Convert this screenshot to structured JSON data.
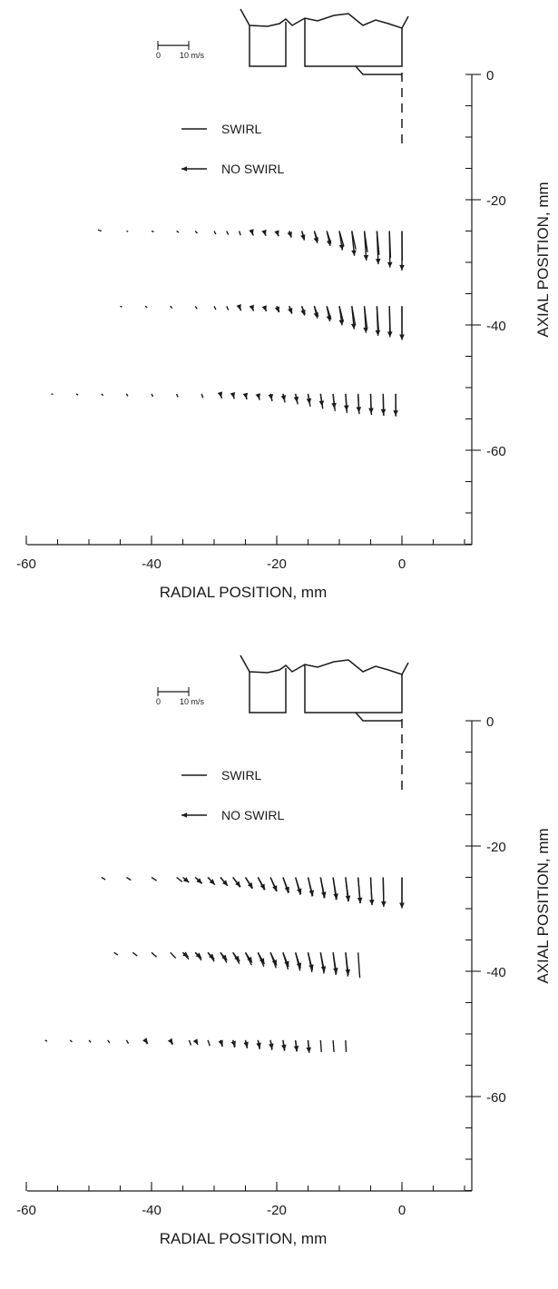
{
  "chart_data": [
    {
      "type": "quiver",
      "xlabel": "RADIAL POSITION, mm",
      "ylabel": "AXIAL POSITION, mm",
      "xlim": [
        -60,
        10
      ],
      "ylim": [
        -75,
        0
      ],
      "xticks": [
        -60,
        -40,
        -20,
        0
      ],
      "yticks": [
        0,
        -20,
        -40,
        -60
      ],
      "grid": false,
      "scale_bar": {
        "min_label": "0",
        "max_label": "10 m/s",
        "value": 10
      },
      "legend": [
        {
          "label": "SWIRL",
          "style": "plain"
        },
        {
          "label": "NO SWIRL",
          "style": "arrowhead"
        }
      ],
      "series": [
        {
          "name": "SWIRL",
          "y": -25,
          "x": [
            -48,
            -44,
            -40,
            -36,
            -33,
            -30,
            -28,
            -26,
            -24,
            -22,
            -20,
            -18,
            -16,
            -14,
            -12,
            -10,
            -8,
            -6,
            -4,
            -2,
            0
          ],
          "u": [
            -1.2,
            0.6,
            0.8,
            0.8,
            0.7,
            0.6,
            0.6,
            0.5,
            0.6,
            0.6,
            0.7,
            0.8,
            1,
            1.3,
            1.5,
            1.6,
            1.4,
            1.1,
            0.8,
            0.4,
            0.1
          ],
          "v": [
            0.4,
            -0.2,
            -0.3,
            -0.5,
            -0.8,
            -1.1,
            -1.3,
            -1.5,
            -1.6,
            -1.7,
            -1.8,
            -2.2,
            -2.8,
            -3.5,
            -4.5,
            -5.5,
            -6.5,
            -7.5,
            -8.5,
            -9.5,
            -10.5
          ]
        },
        {
          "name": "NO SWIRL",
          "y": -25,
          "x": [
            -24,
            -22,
            -20,
            -18,
            -16,
            -14,
            -12,
            -10,
            -8,
            -6,
            -4,
            -2,
            0
          ],
          "u": [
            0.4,
            0.5,
            0.6,
            0.7,
            0.9,
            1.1,
            1.2,
            1.1,
            0.9,
            0.7,
            0.5,
            0.2,
            0
          ],
          "v": [
            -1.4,
            -1.6,
            -1.8,
            -2.3,
            -3.3,
            -4.3,
            -5.3,
            -6.8,
            -8.8,
            -10.5,
            -11.8,
            -13,
            -14
          ]
        },
        {
          "name": "SWIRL",
          "y": -37,
          "x": [
            -45,
            -41,
            -37,
            -33,
            -30,
            -28,
            -26,
            -24,
            -22,
            -20,
            -18,
            -16,
            -14,
            -12,
            -10,
            -8,
            -6,
            -4,
            -2,
            0
          ],
          "u": [
            0.6,
            0.7,
            0.7,
            0.6,
            0.6,
            0.6,
            0.7,
            0.7,
            0.8,
            0.9,
            1,
            1.2,
            1.4,
            1.5,
            1.4,
            1.2,
            0.9,
            0.6,
            0.3,
            0
          ],
          "v": [
            -0.3,
            -0.5,
            -0.7,
            -1,
            -1.2,
            -1.4,
            -1.6,
            -1.7,
            -1.8,
            -2,
            -2.4,
            -2.9,
            -3.7,
            -4.7,
            -5.6,
            -6.7,
            -7.5,
            -8.5,
            -9.3,
            -10
          ]
        },
        {
          "name": "NO SWIRL",
          "y": -37,
          "x": [
            -26,
            -24,
            -22,
            -20,
            -18,
            -16,
            -14,
            -12,
            -10,
            -8,
            -6,
            -4,
            -2,
            0
          ],
          "u": [
            0.5,
            0.6,
            0.7,
            0.8,
            0.9,
            1,
            1.1,
            1.1,
            1,
            0.8,
            0.6,
            0.4,
            0.2,
            0
          ],
          "v": [
            -1.4,
            -1.6,
            -1.8,
            -2.2,
            -2.7,
            -3.3,
            -4.3,
            -5.4,
            -6.8,
            -8.2,
            -9.5,
            -10.5,
            -11,
            -12
          ]
        },
        {
          "name": "SWIRL",
          "y": -51,
          "x": [
            -56,
            -52,
            -48,
            -44,
            -40,
            -36,
            -32,
            -29,
            -27,
            -25,
            -23,
            -21,
            -19,
            -17,
            -15,
            -13,
            -11,
            -9,
            -7,
            -5,
            -3,
            -1
          ],
          "u": [
            0.6,
            0.6,
            0.6,
            0.5,
            0.5,
            0.5,
            0.5,
            0.5,
            0.5,
            0.5,
            0.6,
            0.6,
            0.7,
            0.8,
            0.8,
            0.8,
            0.7,
            0.5,
            0.4,
            0.3,
            0.2,
            0.1
          ],
          "v": [
            -0.2,
            -0.4,
            -0.6,
            -0.8,
            -1,
            -1.2,
            -1.4,
            -1.6,
            -1.8,
            -2,
            -2.2,
            -2.6,
            -3.1,
            -3.7,
            -4.5,
            -5.3,
            -6.1,
            -6.8,
            -7.2,
            -7.5,
            -7.8,
            -8
          ]
        },
        {
          "name": "NO SWIRL",
          "y": -51,
          "x": [
            -29,
            -27,
            -25,
            -23,
            -21,
            -19,
            -17,
            -15,
            -13,
            -11,
            -9,
            -7,
            -5,
            -3,
            -1
          ],
          "u": [
            0.4,
            0.4,
            0.4,
            0.5,
            0.5,
            0.6,
            0.6,
            0.6,
            0.6,
            0.5,
            0.4,
            0.3,
            0.2,
            0.1,
            0
          ],
          "v": [
            -1.3,
            -1.5,
            -1.7,
            -1.9,
            -2.1,
            -2.5,
            -3,
            -3.6,
            -4.4,
            -5.2,
            -6,
            -6.6,
            -7,
            -7.4,
            -7.8
          ]
        }
      ]
    },
    {
      "type": "quiver",
      "xlabel": "RADIAL POSITION, mm",
      "ylabel": "AXIAL POSITION, mm",
      "xlim": [
        -60,
        10
      ],
      "ylim": [
        -75,
        0
      ],
      "xticks": [
        -60,
        -40,
        -20,
        0
      ],
      "yticks": [
        0,
        -20,
        -40,
        -60
      ],
      "grid": false,
      "scale_bar": {
        "min_label": "0",
        "max_label": "10 m/s",
        "value": 10
      },
      "legend": [
        {
          "label": "SWIRL",
          "style": "plain"
        },
        {
          "label": "NO SWIRL",
          "style": "arrowhead"
        }
      ],
      "series": [
        {
          "name": "SWIRL",
          "y": -25,
          "x": [
            -48,
            -44,
            -40,
            -36,
            -33,
            -31,
            -29,
            -27,
            -25,
            -23,
            -21,
            -19,
            -17,
            -15,
            -13,
            -11,
            -9,
            -7,
            -5,
            -3,
            0
          ],
          "u": [
            1.4,
            1.6,
            1.8,
            2,
            2.3,
            2.4,
            2.5,
            2.5,
            2.4,
            2.3,
            2.1,
            1.9,
            1.7,
            1.5,
            1.3,
            1.1,
            0.9,
            0.7,
            0.5,
            0.2,
            0
          ],
          "v": [
            -0.8,
            -1,
            -1.2,
            -1.6,
            -2.2,
            -2.6,
            -3,
            -3.5,
            -4,
            -4.5,
            -5,
            -5.6,
            -6.2,
            -6.8,
            -7.4,
            -8,
            -8.6,
            -9.2,
            -9.7,
            -10,
            -10.5
          ]
        },
        {
          "name": "NO SWIRL",
          "y": -25,
          "x": [
            -35,
            -33,
            -31,
            -29,
            -27,
            -25,
            -23,
            -21,
            -19,
            -17,
            -15,
            -13,
            -11,
            -9,
            -7,
            -5,
            -3,
            0
          ],
          "u": [
            2.2,
            2.4,
            2.5,
            2.6,
            2.7,
            2.6,
            2.5,
            2.3,
            2.1,
            1.9,
            1.7,
            1.5,
            1.3,
            1.1,
            0.8,
            0.5,
            0.2,
            0
          ],
          "v": [
            -1.8,
            -2.2,
            -2.6,
            -3,
            -3.4,
            -3.9,
            -4.4,
            -4.9,
            -5.4,
            -6,
            -6.6,
            -7.2,
            -7.8,
            -8.5,
            -9.2,
            -9.9,
            -10.5,
            -11
          ]
        },
        {
          "name": "SWIRL",
          "y": -37,
          "x": [
            -46,
            -43,
            -40,
            -37,
            -35,
            -33,
            -31,
            -29,
            -27,
            -25,
            -23,
            -21,
            -19,
            -17,
            -15,
            -13,
            -11,
            -9,
            -7
          ],
          "u": [
            1.4,
            1.6,
            1.8,
            1.9,
            2.1,
            2.2,
            2.3,
            2.3,
            2.3,
            2.2,
            2.1,
            2,
            1.8,
            1.6,
            1.4,
            1.2,
            1,
            0.8,
            0.6
          ],
          "v": [
            -0.9,
            -1.2,
            -1.6,
            -2,
            -2.4,
            -2.8,
            -3.2,
            -3.6,
            -4,
            -4.5,
            -5,
            -5.5,
            -6,
            -6.5,
            -7,
            -7.5,
            -8,
            -8.5,
            -9
          ]
        },
        {
          "name": "NO SWIRL",
          "y": -37,
          "x": [
            -35,
            -33,
            -31,
            -29,
            -27,
            -25,
            -23,
            -21,
            -19,
            -17,
            -15,
            -13,
            -11,
            -9
          ],
          "u": [
            2,
            2.2,
            2.3,
            2.4,
            2.4,
            2.4,
            2.3,
            2.2,
            2,
            1.8,
            1.6,
            1.4,
            1.2,
            1
          ],
          "v": [
            -1.6,
            -2,
            -2.4,
            -2.8,
            -3.2,
            -3.6,
            -4.1,
            -4.6,
            -5.1,
            -5.7,
            -6.3,
            -6.9,
            -7.5,
            -8
          ]
        },
        {
          "name": "SWIRL",
          "y": -51,
          "x": [
            -57,
            -53,
            -50,
            -47,
            -44,
            -41,
            -37,
            -34,
            -31,
            -29,
            -27,
            -25,
            -23,
            -21,
            -19,
            -17,
            -15,
            -13,
            -11,
            -9
          ],
          "u": [
            0.7,
            0.7,
            0.7,
            0.7,
            0.7,
            0.7,
            0.7,
            0.7,
            0.7,
            0.7,
            0.6,
            0.6,
            0.6,
            0.5,
            0.5,
            0.4,
            0.4,
            0.3,
            0.3,
            0.2
          ],
          "v": [
            -0.4,
            -0.6,
            -0.8,
            -1,
            -1.2,
            -1.4,
            -1.6,
            -1.8,
            -2,
            -2.3,
            -2.6,
            -2.9,
            -3.2,
            -3.5,
            -3.8,
            -4,
            -4.2,
            -4.2,
            -4.2,
            -4.2
          ]
        },
        {
          "name": "NO SWIRL",
          "y": -51,
          "x": [
            -41,
            -37,
            -33,
            -29,
            -27,
            -25,
            -23,
            -21,
            -19,
            -17,
            -15
          ],
          "u": [
            0.9,
            0.9,
            0.9,
            0.8,
            0.8,
            0.7,
            0.7,
            0.6,
            0.6,
            0.5,
            0.4
          ],
          "v": [
            -1.2,
            -1.4,
            -1.6,
            -2,
            -2.3,
            -2.6,
            -2.9,
            -3.2,
            -3.6,
            -4,
            -4.5
          ]
        }
      ]
    }
  ]
}
